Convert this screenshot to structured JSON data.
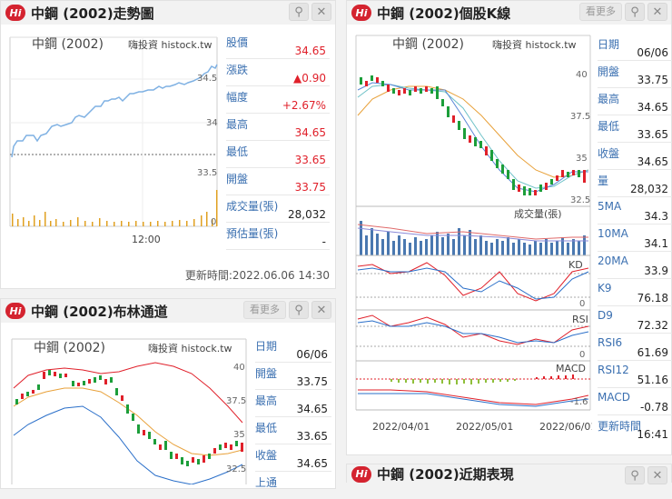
{
  "intraday": {
    "title": "中鋼 (2002)走勢圖",
    "chart_label": "中鋼 (2002)",
    "watermark": "嗨投資 histock.tw",
    "y_ticks": [
      "34.5",
      "34",
      "33.5",
      "0"
    ],
    "x_ticks": [
      "12:00"
    ],
    "fields": [
      {
        "label": "股價",
        "value": "34.65",
        "red": true
      },
      {
        "label": "漲跌",
        "value": "▲0.90",
        "red": true
      },
      {
        "label": "幅度",
        "value": "+2.67%",
        "red": true
      },
      {
        "label": "最高",
        "value": "34.65",
        "red": true
      },
      {
        "label": "最低",
        "value": "33.65",
        "red": true
      },
      {
        "label": "開盤",
        "value": "33.75",
        "red": true
      },
      {
        "label": "成交量(張)",
        "value": "28,032",
        "red": false
      },
      {
        "label": "預估量(張)",
        "value": "-",
        "red": false
      }
    ],
    "updated": "更新時間:2022.06.06 14:30"
  },
  "bollinger": {
    "title": "中鋼 (2002)布林通道",
    "more": "看更多",
    "chart_label": "中鋼 (2002)",
    "watermark": "嗨投資 histock.tw",
    "y_ticks": [
      "40",
      "37.5",
      "35",
      "32.5"
    ],
    "fields": [
      {
        "label": "日期",
        "value": "06/06"
      },
      {
        "label": "開盤",
        "value": "33.75"
      },
      {
        "label": "最高",
        "value": "34.65"
      },
      {
        "label": "最低",
        "value": "33.65"
      },
      {
        "label": "收盤",
        "value": "34.65"
      },
      {
        "label": "上通",
        "value": ""
      }
    ]
  },
  "kline": {
    "title": "中鋼 (2002)個股K線",
    "more": "看更多",
    "chart_label": "中鋼 (2002)",
    "watermark": "嗨投資 histock.tw",
    "y_ticks": [
      "40",
      "37.5",
      "35",
      "32.5"
    ],
    "vol_label": "成交量(張)",
    "kd_label": "KD",
    "kd_tick": "0",
    "rsi_label": "RSI",
    "rsi_tick": "0",
    "macd_label": "MACD",
    "macd_tick": "-1.6",
    "x_ticks": [
      "2022/04/01",
      "2022/05/01",
      "2022/06/01"
    ],
    "fields": [
      {
        "label": "日期",
        "value": "06/06"
      },
      {
        "label": "開盤",
        "value": "33.75"
      },
      {
        "label": "最高",
        "value": "34.65"
      },
      {
        "label": "最低",
        "value": "33.65"
      },
      {
        "label": "收盤",
        "value": "34.65"
      },
      {
        "label": "量",
        "value": "28,032"
      },
      {
        "label": "5MA",
        "value": "34.3"
      },
      {
        "label": "10MA",
        "value": "34.1"
      },
      {
        "label": "20MA",
        "value": "33.9"
      },
      {
        "label": "K9",
        "value": "76.18"
      },
      {
        "label": "D9",
        "value": "72.32"
      },
      {
        "label": "RSI6",
        "value": "61.69"
      },
      {
        "label": "RSI12",
        "value": "51.16"
      },
      {
        "label": "MACD",
        "value": "-0.78"
      },
      {
        "label": "更新時間",
        "value": "16:41"
      }
    ]
  },
  "recent": {
    "title": "中鋼 (2002)近期表現"
  },
  "colors": {
    "up": "#e0202a",
    "down": "#1c9e3a",
    "line": "#7fb1e3",
    "accent": "#3a6fb0"
  }
}
